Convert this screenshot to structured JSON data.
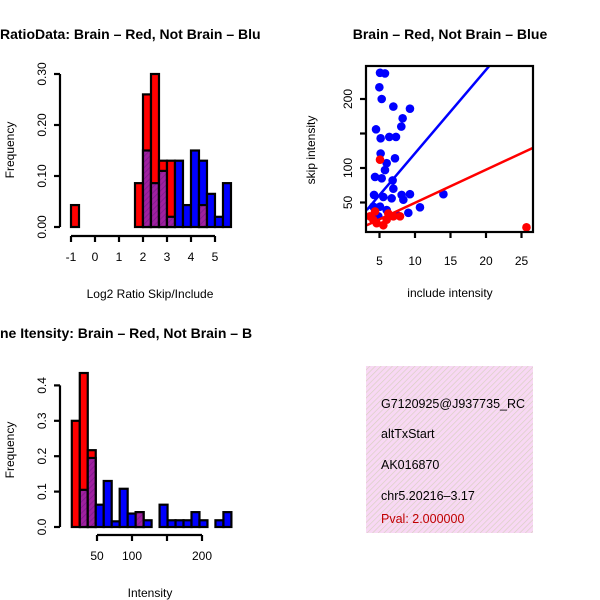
{
  "colors": {
    "red": "#ff0000",
    "blue": "#0000ff",
    "overlap": "#a020a0",
    "panel": "#f8d8f4",
    "pval": "#c00000"
  },
  "chart_data": [
    {
      "type": "bar",
      "title": "RatioData: Brain – Red, Not Brain – Blu",
      "xlabel": "Log2 Ratio Skip/Include",
      "ylabel": "Frequency",
      "bin_start": -1,
      "bin_width": 0.3333,
      "xticks": [
        -1,
        0,
        1,
        2,
        3,
        4,
        5
      ],
      "yticks": [
        "0.00",
        "0.10",
        "0.20",
        "0.30"
      ],
      "yticks_values": [
        0,
        0.1,
        0.2,
        0.3
      ],
      "ylim": [
        0,
        0.3
      ],
      "series": [
        {
          "name": "Brain",
          "color": "red",
          "values": [
            0.043,
            0,
            0,
            0,
            0,
            0,
            0,
            0,
            0.086,
            0.26,
            0.3,
            0.13,
            0.13,
            0,
            0,
            0,
            0.043,
            0,
            0,
            0
          ]
        },
        {
          "name": "Not Brain",
          "color": "blue",
          "values": [
            0,
            0,
            0,
            0,
            0,
            0,
            0,
            0,
            0,
            0.15,
            0.086,
            0.11,
            0.02,
            0.13,
            0.043,
            0.15,
            0.13,
            0.065,
            0.02,
            0.086
          ]
        }
      ]
    },
    {
      "type": "scatter",
      "title": "Brain – Red, Not Brain – Blue",
      "xlabel": "include intensity",
      "ylabel": "skip intensity",
      "xlim": [
        2.9,
        26.5
      ],
      "ylim": [
        7,
        247
      ],
      "xticks": [
        5,
        10,
        15,
        20,
        25
      ],
      "yticks": [
        50,
        100,
        150,
        200
      ],
      "ytick_labels": [
        "50",
        "100",
        "",
        "200"
      ],
      "series": [
        {
          "name": "Not Brain",
          "color": "blue",
          "fit": {
            "slope": 12.1,
            "intercept": 0.3
          },
          "points": [
            [
              5.07,
              238
            ],
            [
              5.77,
              237
            ],
            [
              4.98,
              217
            ],
            [
              5.31,
              200
            ],
            [
              6.95,
              189
            ],
            [
              9.29,
              186
            ],
            [
              8.26,
              172
            ],
            [
              8.07,
              160
            ],
            [
              4.51,
              156
            ],
            [
              5.16,
              143
            ],
            [
              6.38,
              145
            ],
            [
              7.32,
              145
            ],
            [
              5.16,
              121
            ],
            [
              7.18,
              114
            ],
            [
              6.01,
              107
            ],
            [
              5.77,
              97
            ],
            [
              4.37,
              87
            ],
            [
              5.31,
              85
            ],
            [
              6.85,
              82
            ],
            [
              6.95,
              70
            ],
            [
              4.23,
              61
            ],
            [
              5.54,
              58
            ],
            [
              6.71,
              56
            ],
            [
              8.12,
              61
            ],
            [
              9.29,
              62
            ],
            [
              14.0,
              62
            ],
            [
              10.7,
              43
            ],
            [
              9.06,
              35
            ],
            [
              5.07,
              44
            ],
            [
              6.01,
              39
            ],
            [
              7.42,
              32
            ],
            [
              8.36,
              54
            ],
            [
              4.13,
              44
            ],
            [
              4.84,
              30
            ]
          ]
        },
        {
          "name": "Brain",
          "color": "red",
          "fit": {
            "slope": 4.79,
            "intercept": 1.7
          },
          "points": [
            [
              5.07,
              112
            ],
            [
              4.13,
              25
            ],
            [
              3.66,
              30
            ],
            [
              4.6,
              20
            ],
            [
              6.01,
              25
            ],
            [
              6.95,
              30
            ],
            [
              5.54,
              17
            ],
            [
              25.7,
              14
            ],
            [
              4.37,
              37
            ],
            [
              6.24,
              34
            ],
            [
              7.89,
              30
            ]
          ]
        }
      ]
    },
    {
      "type": "bar",
      "title": "ne Itensity: Brain – Red, Not Brain – B",
      "xlabel": "Intensity",
      "ylabel": "Frequency",
      "bin_start": 14,
      "bin_width": 11.4,
      "xticks": [
        50,
        100,
        150,
        200
      ],
      "xtick_labels": [
        "50",
        "100",
        "",
        "200"
      ],
      "yticks": [
        "0.0",
        "0.1",
        "0.2",
        "0.3",
        "0.4"
      ],
      "yticks_values": [
        0,
        0.1,
        0.2,
        0.3,
        0.4
      ],
      "ylim": [
        0,
        0.4
      ],
      "series": [
        {
          "name": "Brain",
          "color": "red",
          "values": [
            0.3,
            0.435,
            0.217,
            0,
            0,
            0,
            0,
            0,
            0.042,
            0,
            0,
            0,
            0,
            0,
            0,
            0,
            0,
            0,
            0,
            0
          ]
        },
        {
          "name": "Not Brain",
          "color": "blue",
          "values": [
            0,
            0.105,
            0.195,
            0.063,
            0.13,
            0.016,
            0.108,
            0.038,
            0.042,
            0.019,
            0,
            0.063,
            0.019,
            0.019,
            0.019,
            0.042,
            0.019,
            0,
            0.019,
            0.042
          ]
        }
      ]
    }
  ],
  "info": {
    "id": "G7120925@J937735_RC",
    "event": "altTxStart",
    "accession": "AK016870",
    "location": "chr5.20216–3.17",
    "pval": "Pval: 2.000000"
  }
}
